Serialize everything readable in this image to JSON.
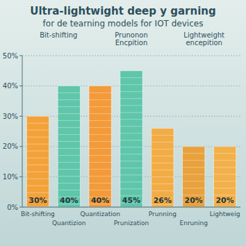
{
  "chart_data": {
    "type": "bar",
    "title": "Ultra-lightwight deep y garning",
    "subtitle": "for de tearning models for IOT devices",
    "annotations": [
      "Bit-shifting",
      "Prunonon Encpition",
      "Lightweight encepition"
    ],
    "categories": [
      "Bit-shifting",
      "Quantizion",
      "Quantization",
      "Prunization",
      "Prunning",
      "Enruning",
      "Lightweig"
    ],
    "values": [
      30,
      40,
      40,
      45,
      26,
      20,
      20
    ],
    "value_labels": [
      "30%",
      "40%",
      "40%",
      "45%",
      "26%",
      "20%",
      "20%"
    ],
    "colors": [
      "#f3a23a",
      "#5fc6aa",
      "#f39a3a",
      "#5fc6aa",
      "#f2ac45",
      "#e8a13c",
      "#f2b04a"
    ],
    "ylim": [
      0,
      50
    ],
    "yticks": [
      {
        "value": 0,
        "label": "0%"
      },
      {
        "value": 10,
        "label": "10%"
      },
      {
        "value": 20,
        "label": "20%"
      },
      {
        "value": 30,
        "label": "30%"
      },
      {
        "value": 40,
        "label": "40%"
      },
      {
        "value": 50,
        "label": "50%"
      }
    ],
    "grid": true,
    "data_labels": true
  }
}
